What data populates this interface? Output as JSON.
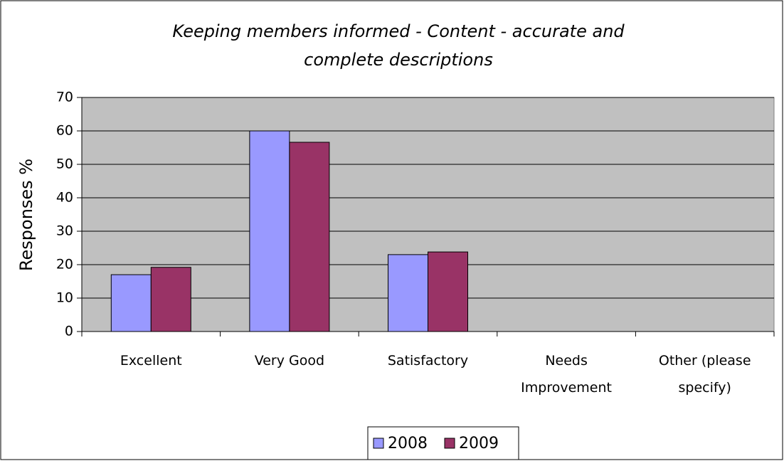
{
  "chart_data": {
    "type": "bar",
    "title": "Keeping members informed - Content - accurate and complete descriptions",
    "y_label": "Responses %",
    "categories": [
      "Excellent",
      "Very Good",
      "Satisfactory",
      "Needs Improvement",
      "Other (please specify)"
    ],
    "series": [
      {
        "name": "2008",
        "color": "#9999ff",
        "values": [
          17,
          60,
          23,
          0,
          0
        ]
      },
      {
        "name": "2009",
        "color": "#993366",
        "values": [
          19.2,
          56.6,
          23.8,
          0,
          0
        ]
      }
    ],
    "ylim": [
      0,
      70
    ],
    "yticks": [
      0,
      10,
      20,
      30,
      40,
      50,
      60,
      70
    ],
    "grid": true,
    "plot_background": "#c0c0c0",
    "legend": "bottom"
  }
}
